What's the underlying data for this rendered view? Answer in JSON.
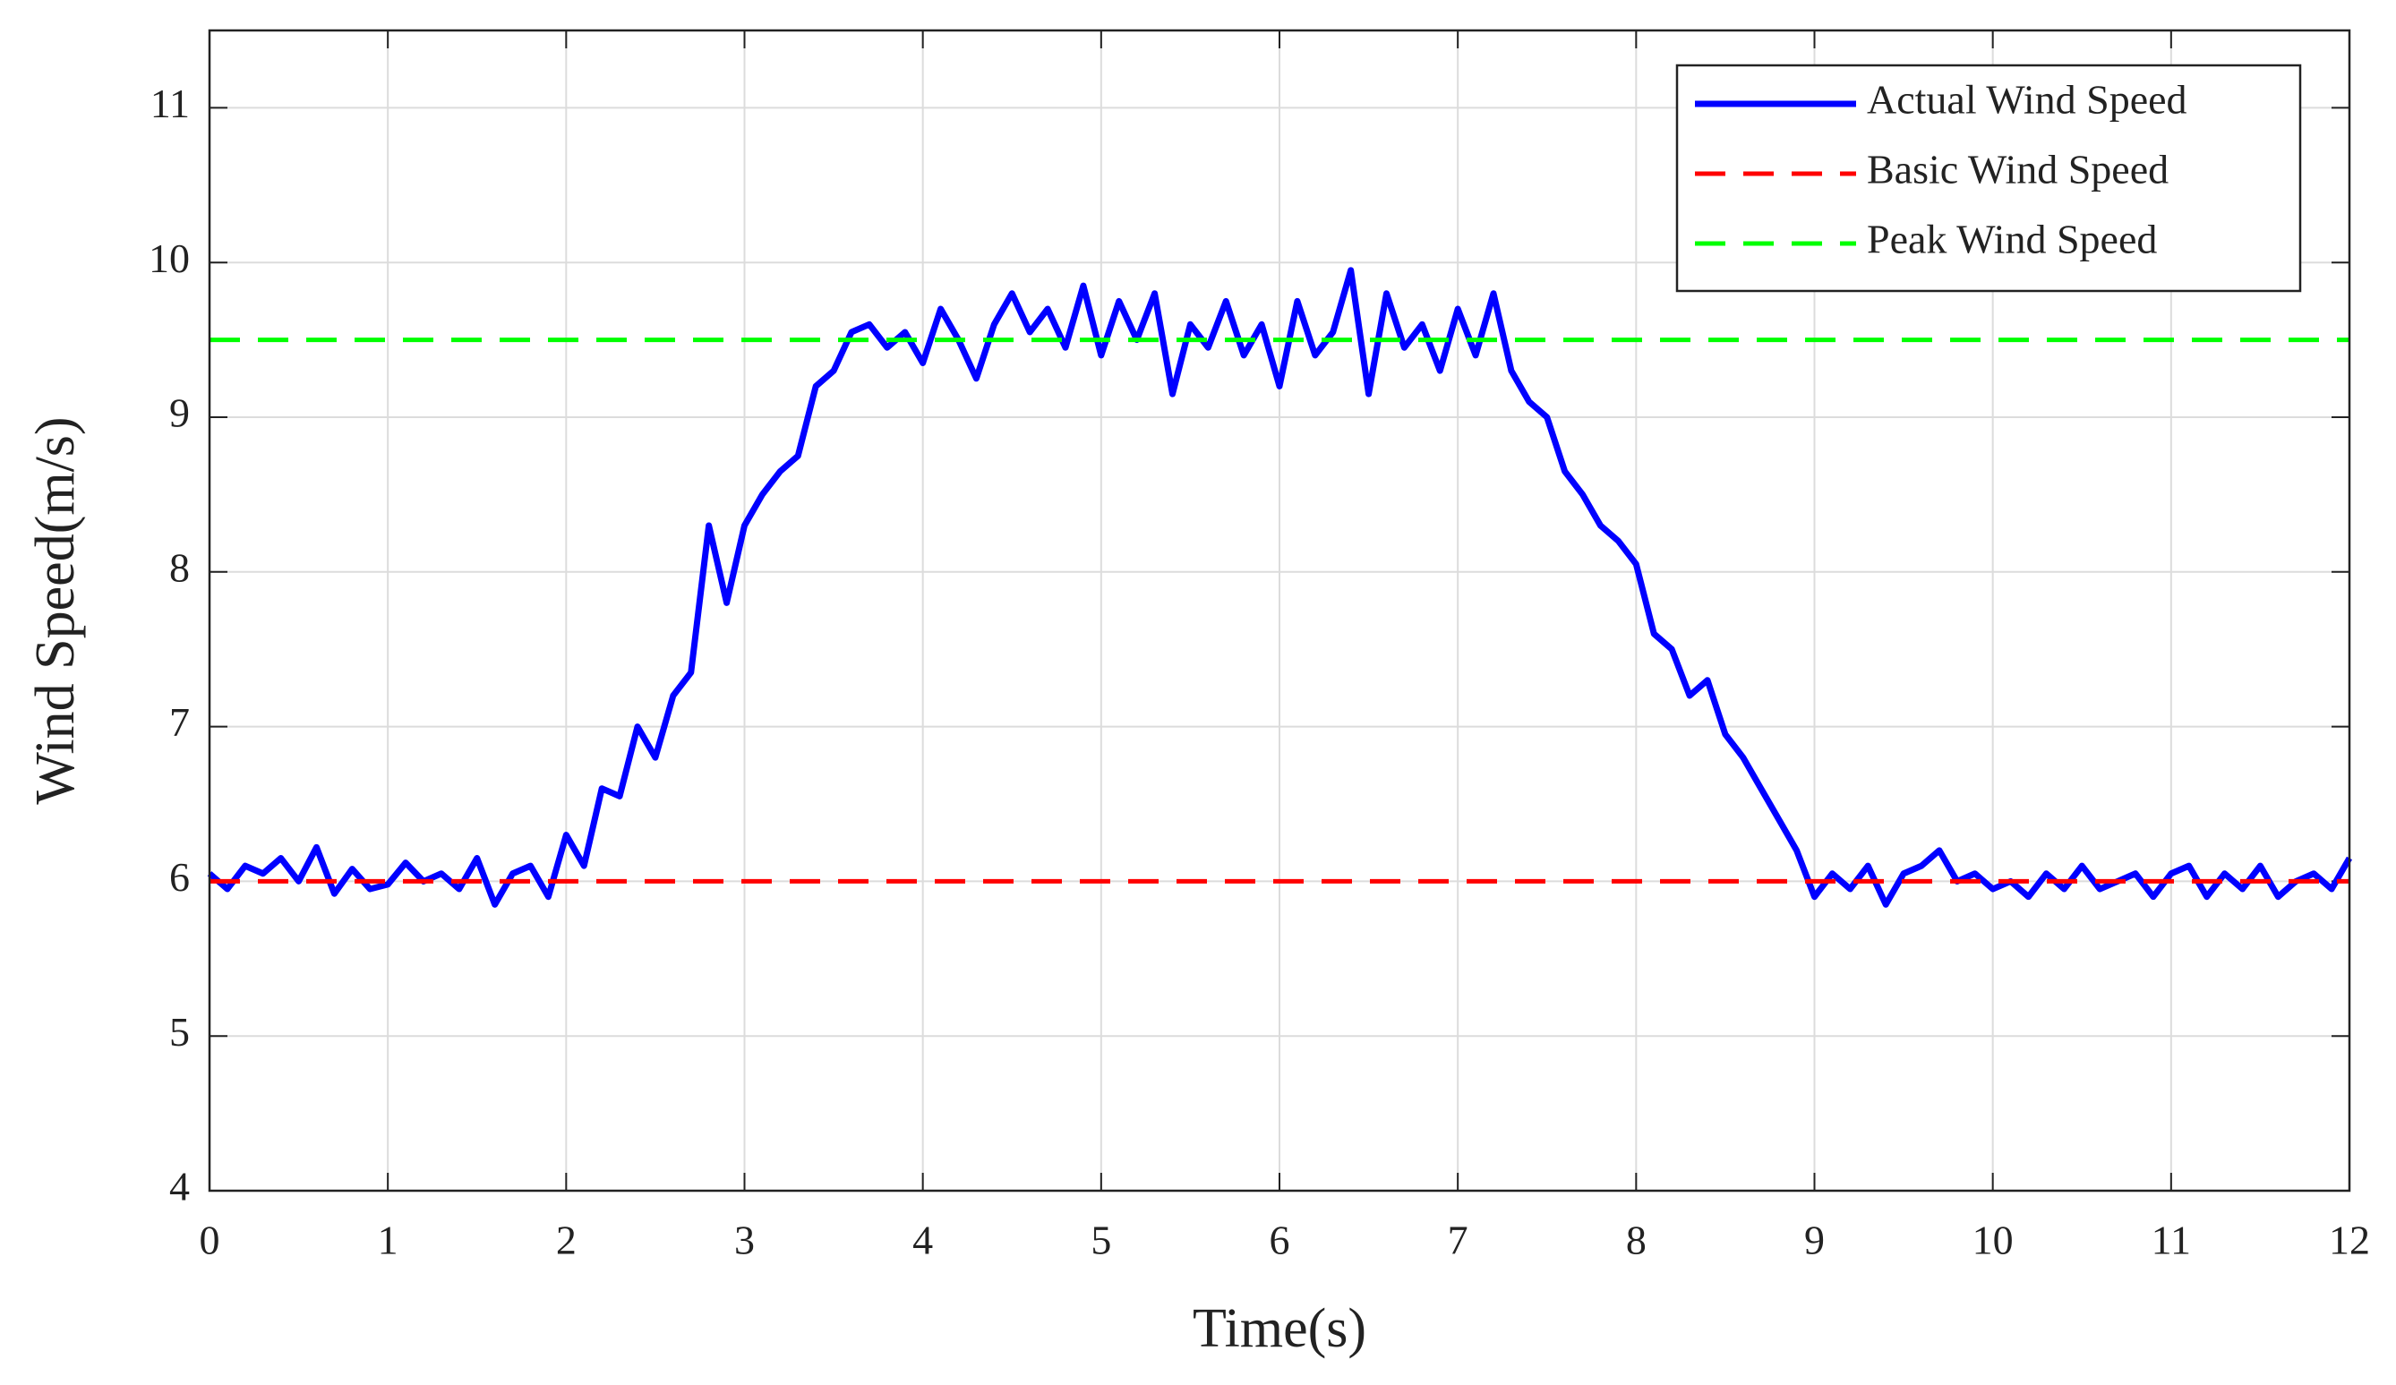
{
  "chart_data": {
    "type": "line",
    "xlabel": "Time(s)",
    "ylabel": "Wind Speed(m/s)",
    "xlim": [
      0,
      12
    ],
    "xticks": [
      0,
      1,
      2,
      3,
      4,
      5,
      6,
      7,
      8,
      9,
      10,
      11,
      12
    ],
    "ylim": [
      4,
      11.5
    ],
    "yticks": [
      4,
      5,
      6,
      7,
      8,
      9,
      10,
      11
    ],
    "grid": true,
    "legend": "upper right",
    "series": [
      {
        "name": "Actual Wind Speed",
        "color": "#0000ff",
        "linestyle": "solid",
        "x": [
          0,
          0.1,
          0.2,
          0.3,
          0.4,
          0.5,
          0.6,
          0.7,
          0.8,
          0.9,
          1,
          1.1,
          1.2,
          1.3,
          1.4,
          1.5,
          1.6,
          1.7,
          1.8,
          1.9,
          2,
          2.1,
          2.2,
          2.3,
          2.4,
          2.5,
          2.6,
          2.7,
          2.8,
          2.9,
          3,
          3.1,
          3.2,
          3.3,
          3.4,
          3.5,
          3.6,
          3.7,
          3.8,
          3.9,
          4,
          4.1,
          4.2,
          4.3,
          4.4,
          4.5,
          4.6,
          4.7,
          4.8,
          4.9,
          5,
          5.1,
          5.2,
          5.3,
          5.4,
          5.5,
          5.6,
          5.7,
          5.8,
          5.9,
          6,
          6.1,
          6.2,
          6.3,
          6.4,
          6.5,
          6.6,
          6.7,
          6.8,
          6.9,
          7,
          7.1,
          7.2,
          7.3,
          7.4,
          7.5,
          7.6,
          7.7,
          7.8,
          7.9,
          8,
          8.1,
          8.2,
          8.3,
          8.4,
          8.5,
          8.6,
          8.7,
          8.8,
          8.9,
          9,
          9.1,
          9.2,
          9.3,
          9.4,
          9.5,
          9.6,
          9.7,
          9.8,
          9.9,
          10,
          10.1,
          10.2,
          10.3,
          10.4,
          10.5,
          10.6,
          10.7,
          10.8,
          10.9,
          11,
          11.1,
          11.2,
          11.3,
          11.4,
          11.5,
          11.6,
          11.7,
          11.8,
          11.9,
          12
        ],
        "values": [
          6.05,
          5.95,
          6.1,
          6.05,
          6.15,
          6.0,
          6.22,
          5.92,
          6.08,
          5.95,
          5.98,
          6.12,
          6.0,
          6.05,
          5.95,
          6.15,
          5.85,
          6.05,
          6.1,
          5.9,
          6.3,
          6.1,
          6.6,
          6.55,
          7.0,
          6.8,
          7.2,
          7.35,
          8.3,
          7.8,
          8.3,
          8.5,
          8.65,
          8.75,
          9.2,
          9.3,
          9.55,
          9.6,
          9.45,
          9.55,
          9.35,
          9.7,
          9.5,
          9.25,
          9.6,
          9.8,
          9.55,
          9.7,
          9.45,
          9.85,
          9.4,
          9.75,
          9.5,
          9.8,
          9.15,
          9.6,
          9.45,
          9.75,
          9.4,
          9.6,
          9.2,
          9.75,
          9.4,
          9.55,
          9.95,
          9.15,
          9.8,
          9.45,
          9.6,
          9.3,
          9.7,
          9.4,
          9.8,
          9.3,
          9.1,
          9.0,
          8.65,
          8.5,
          8.3,
          8.2,
          8.05,
          7.6,
          7.5,
          7.2,
          7.3,
          6.95,
          6.8,
          6.6,
          6.4,
          6.2,
          5.9,
          6.05,
          5.95,
          6.1,
          5.85,
          6.05,
          6.1,
          6.2,
          6.0,
          6.05,
          5.95,
          6.0,
          5.9,
          6.05,
          5.95,
          6.1,
          5.95,
          6.0,
          6.05,
          5.9,
          6.05,
          6.1,
          5.9,
          6.05,
          5.95,
          6.1,
          5.9,
          6.0,
          6.05,
          5.95,
          6.15
        ]
      },
      {
        "name": "Basic Wind Speed",
        "color": "#ff0000",
        "linestyle": "dashed",
        "x": [
          0,
          12
        ],
        "values": [
          6,
          6
        ]
      },
      {
        "name": "Peak Wind Speed",
        "color": "#00ff00",
        "linestyle": "dashed",
        "x": [
          0,
          12
        ],
        "values": [
          9.5,
          9.5
        ]
      }
    ]
  }
}
